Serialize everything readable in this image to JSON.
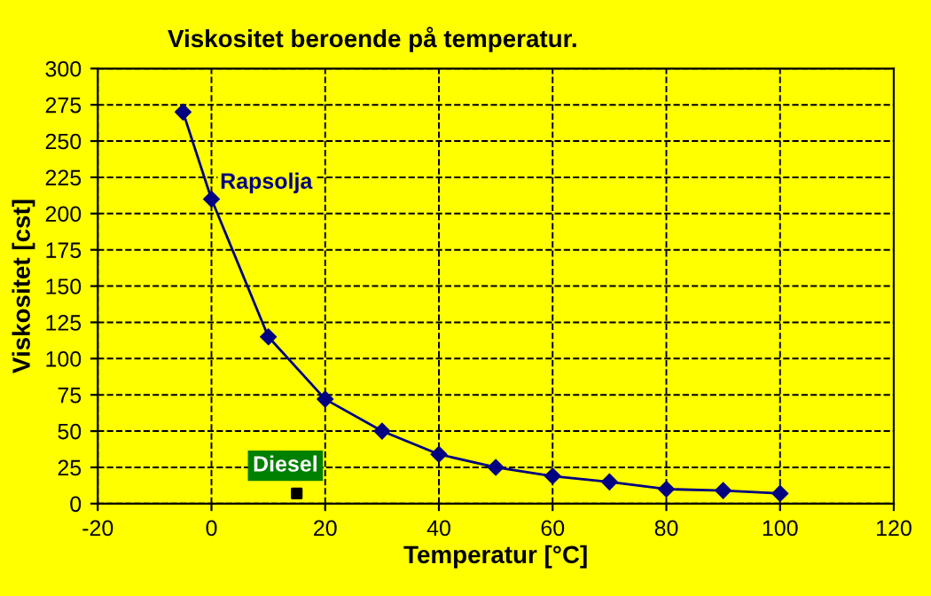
{
  "chart_data": {
    "type": "line",
    "title": "Viskositet beroende på temperatur.",
    "xlabel": "Temperatur [°C]",
    "ylabel": "Viskositet [cst]",
    "series": [
      {
        "name": "Rapsolja",
        "color": "#000080",
        "marker": "diamond",
        "x": [
          -5,
          0,
          10,
          20,
          30,
          40,
          50,
          60,
          70,
          80,
          90,
          100
        ],
        "values": [
          270,
          210,
          115,
          72,
          50,
          34,
          25,
          19,
          15,
          10,
          9,
          7
        ]
      },
      {
        "name": "Diesel",
        "type": "scatter",
        "color": "#000000",
        "marker": "square",
        "x": [
          15
        ],
        "values": [
          7
        ]
      }
    ],
    "xlim": [
      -20,
      120
    ],
    "xticks": [
      -20,
      0,
      20,
      40,
      60,
      80,
      100,
      120
    ],
    "ylim": [
      0,
      300
    ],
    "yticks": [
      0,
      25,
      50,
      75,
      100,
      125,
      150,
      175,
      200,
      225,
      250,
      275,
      300
    ],
    "grid": true
  }
}
